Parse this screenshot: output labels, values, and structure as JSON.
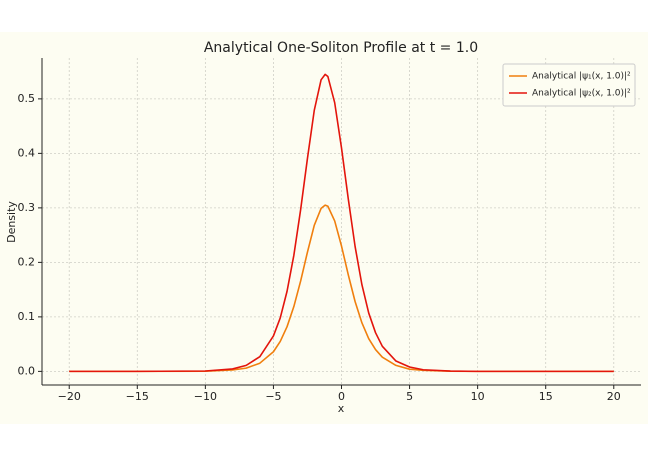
{
  "chart_data": {
    "type": "line",
    "title": "Analytical One-Soliton Profile at t = 1.0",
    "xlabel": "x",
    "ylabel": "Density",
    "x": [
      -20,
      -15,
      -10,
      -8,
      -7,
      -6,
      -5,
      -4.5,
      -4,
      -3.5,
      -3,
      -2.5,
      -2,
      -1.5,
      -1.2,
      -1,
      -0.5,
      0,
      0.5,
      1,
      1.5,
      2,
      2.5,
      3,
      4,
      5,
      6,
      8,
      10,
      15,
      20
    ],
    "series": [
      {
        "name": "Analytical |ψ₁(x, 1.0)|²",
        "color": "#f07f0e",
        "values": [
          0,
          0,
          0.0004,
          0.0025,
          0.006,
          0.015,
          0.036,
          0.055,
          0.082,
          0.119,
          0.166,
          0.219,
          0.268,
          0.299,
          0.305,
          0.303,
          0.276,
          0.23,
          0.177,
          0.128,
          0.089,
          0.06,
          0.04,
          0.026,
          0.011,
          0.004,
          0.002,
          0.0003,
          0,
          0,
          0
        ]
      },
      {
        "name": "Analytical |ψ₂(x, 1.0)|²",
        "color": "#e3150c",
        "values": [
          0,
          0,
          0.0007,
          0.0045,
          0.011,
          0.027,
          0.065,
          0.098,
          0.147,
          0.213,
          0.297,
          0.391,
          0.479,
          0.535,
          0.545,
          0.541,
          0.493,
          0.41,
          0.316,
          0.229,
          0.159,
          0.107,
          0.071,
          0.046,
          0.019,
          0.008,
          0.003,
          0.0005,
          0,
          0,
          0
        ]
      }
    ],
    "xlim": [
      -22,
      22
    ],
    "xticks": [
      {
        "value": -20,
        "label": "−20"
      },
      {
        "value": -15,
        "label": "−15"
      },
      {
        "value": -10,
        "label": "−10"
      },
      {
        "value": -5,
        "label": "−5"
      },
      0,
      5,
      10,
      15,
      20
    ],
    "ylim": [
      -0.025,
      0.575
    ],
    "yticks": [
      {
        "value": 0,
        "label": "0.0"
      },
      0.1,
      0.2,
      0.3,
      0.4,
      0.5
    ],
    "grid": true,
    "legend": "upper right"
  }
}
